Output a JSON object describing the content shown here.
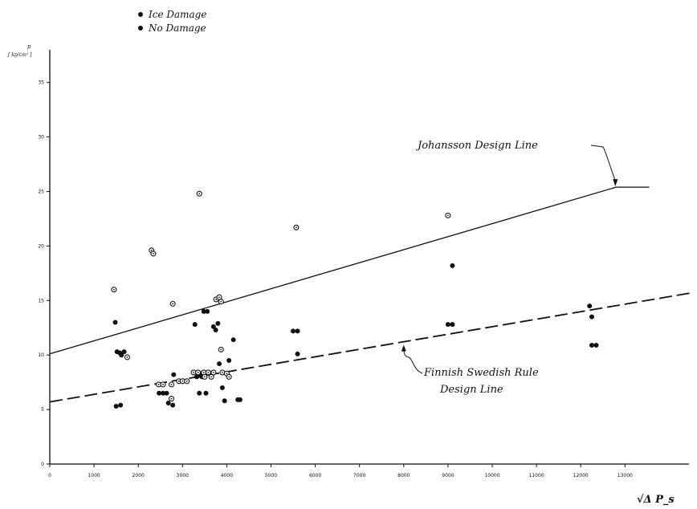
{
  "chart_data": {
    "type": "scatter",
    "title": "",
    "xlabel": "√Δ P_s",
    "ylabel": "p",
    "ylabel_unit": "[ kp/cm² ]",
    "xlim": [
      0,
      14500
    ],
    "ylim": [
      0,
      39
    ],
    "x_ticks": [
      "0",
      "1000",
      "2000",
      "3000",
      "4000",
      "5000",
      "6000",
      "7000",
      "8000",
      "9000",
      "10000",
      "11000",
      "12000",
      "13000"
    ],
    "x_tick_values": [
      0,
      1000,
      2000,
      3000,
      4000,
      5000,
      6000,
      7000,
      8000,
      9000,
      10000,
      11000,
      12000,
      13000
    ],
    "y_ticks": [
      "0",
      "5",
      "10",
      "15",
      "20",
      "25",
      "30",
      "35"
    ],
    "y_tick_values": [
      0,
      5,
      10,
      15,
      20,
      25,
      30,
      35
    ],
    "legend": [
      {
        "label": "Ice Damage",
        "marker": "filled"
      },
      {
        "label": "No Damage",
        "marker": "dotted"
      }
    ],
    "series": [
      {
        "name": "Ice Damage",
        "marker": "filled",
        "points": [
          [
            1480,
            13.0
          ],
          [
            1520,
            10.3
          ],
          [
            1580,
            10.2
          ],
          [
            1620,
            10.0
          ],
          [
            1680,
            10.3
          ],
          [
            1500,
            5.3
          ],
          [
            1600,
            5.4
          ],
          [
            2470,
            6.5
          ],
          [
            2560,
            6.5
          ],
          [
            2640,
            6.5
          ],
          [
            2680,
            5.6
          ],
          [
            2780,
            5.4
          ],
          [
            2800,
            8.2
          ],
          [
            3280,
            12.8
          ],
          [
            3320,
            8.0
          ],
          [
            3360,
            8.1
          ],
          [
            3400,
            8.3
          ],
          [
            3440,
            8.0
          ],
          [
            3480,
            14.0
          ],
          [
            3500,
            8.2
          ],
          [
            3380,
            6.5
          ],
          [
            3530,
            6.5
          ],
          [
            3560,
            14.0
          ],
          [
            3700,
            12.6
          ],
          [
            3750,
            12.3
          ],
          [
            3800,
            12.9
          ],
          [
            3830,
            9.2
          ],
          [
            3900,
            7.0
          ],
          [
            3950,
            5.8
          ],
          [
            4050,
            9.5
          ],
          [
            4150,
            11.4
          ],
          [
            4250,
            5.9
          ],
          [
            4300,
            5.9
          ],
          [
            5500,
            12.2
          ],
          [
            5600,
            12.2
          ],
          [
            5600,
            10.1
          ],
          [
            9000,
            12.8
          ],
          [
            9100,
            12.8
          ],
          [
            9100,
            18.2
          ],
          [
            12200,
            14.5
          ],
          [
            12250,
            13.5
          ],
          [
            12250,
            10.9
          ],
          [
            12350,
            10.9
          ]
        ]
      },
      {
        "name": "No Damage",
        "marker": "dotted",
        "points": [
          [
            1450,
            16.0
          ],
          [
            1750,
            9.8
          ],
          [
            2300,
            19.6
          ],
          [
            2340,
            19.3
          ],
          [
            2460,
            7.3
          ],
          [
            2560,
            7.3
          ],
          [
            2750,
            7.3
          ],
          [
            2750,
            6.0
          ],
          [
            2780,
            14.7
          ],
          [
            2920,
            7.6
          ],
          [
            3000,
            7.6
          ],
          [
            3100,
            7.6
          ],
          [
            3250,
            8.4
          ],
          [
            3350,
            8.4
          ],
          [
            3380,
            24.8
          ],
          [
            3480,
            8.4
          ],
          [
            3500,
            8.0
          ],
          [
            3580,
            8.4
          ],
          [
            3650,
            8.0
          ],
          [
            3700,
            8.4
          ],
          [
            3760,
            15.1
          ],
          [
            3830,
            15.3
          ],
          [
            3870,
            10.5
          ],
          [
            3870,
            14.9
          ],
          [
            3900,
            8.4
          ],
          [
            4000,
            8.3
          ],
          [
            4050,
            8.0
          ],
          [
            5570,
            21.7
          ],
          [
            9000,
            22.8
          ]
        ]
      }
    ],
    "lines": [
      {
        "name": "Johansson Design Line",
        "style": "solid",
        "points": [
          [
            0,
            10.1
          ],
          [
            12800,
            25.4
          ],
          [
            13550,
            25.4
          ]
        ]
      },
      {
        "name": "Finnish Swedish Rule Design Line",
        "style": "dashed",
        "points": [
          [
            0,
            5.7
          ],
          [
            14500,
            15.7
          ]
        ]
      }
    ],
    "annotations": [
      {
        "text": "Johansson Design Line",
        "target": [
          12800,
          25.4
        ]
      },
      {
        "text_line1": "Finnish Swedish Rule",
        "text_line2": "Design Line",
        "target": [
          8000,
          11.0
        ]
      }
    ]
  }
}
